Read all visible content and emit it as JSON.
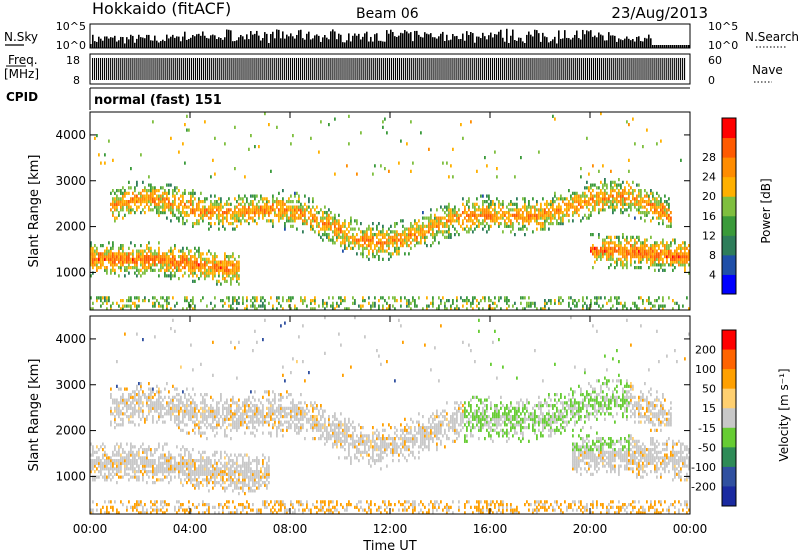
{
  "header": {
    "station": "Hokkaido (fitACF)",
    "beam": "Beam 06",
    "date": "23/Aug/2013"
  },
  "panels": {
    "nsky_label": "N.Sky",
    "nsearch_label": "N.Search",
    "nsky_ticks": [
      "10^5",
      "10^0"
    ],
    "nsearch_ticks": [
      "10^5",
      "10^0"
    ],
    "freq_label": "Freq.",
    "freq_unit": "[MHz]",
    "freq_ticks": [
      "18",
      "8"
    ],
    "nave_label": "Nave",
    "nave_ticks": [
      "60",
      "0"
    ],
    "cpid_label": "CPID",
    "cpid_value": "normal (fast) 151"
  },
  "chart_data": [
    {
      "type": "heatmap",
      "name": "power",
      "ylabel": "Slant Range [km]",
      "xlabel": "",
      "ylim": [
        180,
        4500
      ],
      "yticks": [
        "1000",
        "2000",
        "3000",
        "4000"
      ],
      "colorbar": {
        "label": "Power [dB]",
        "ticks": [
          "4",
          "8",
          "12",
          "16",
          "20",
          "24",
          "28"
        ],
        "range": [
          0,
          32
        ],
        "colors": [
          "#0000ff",
          "#1f4fa8",
          "#2e7d5a",
          "#3a9a3a",
          "#7fbf3f",
          "#ffb000",
          "#ff8c00",
          "#ff5a00",
          "#ff0000"
        ]
      }
    },
    {
      "type": "heatmap",
      "name": "velocity",
      "ylabel": "Slant Range [km]",
      "xlabel": "Time UT",
      "ylim": [
        180,
        4500
      ],
      "yticks": [
        "1000",
        "2000",
        "3000",
        "4000"
      ],
      "xticks": [
        "00:00",
        "04:00",
        "08:00",
        "12:00",
        "16:00",
        "20:00",
        "00:00"
      ],
      "colorbar": {
        "label": "Velocity [m s⁻¹]",
        "ticks": [
          "200",
          "100",
          "50",
          "15",
          "-15",
          "-50",
          "-100",
          "-200"
        ],
        "range": [
          -250,
          250
        ],
        "colors": [
          "#ff0000",
          "#ff6400",
          "#ffa000",
          "#ffd070",
          "#c8c8c8",
          "#66cc33",
          "#2e8b57",
          "#3050a0",
          "#1a2aa0"
        ]
      }
    }
  ]
}
